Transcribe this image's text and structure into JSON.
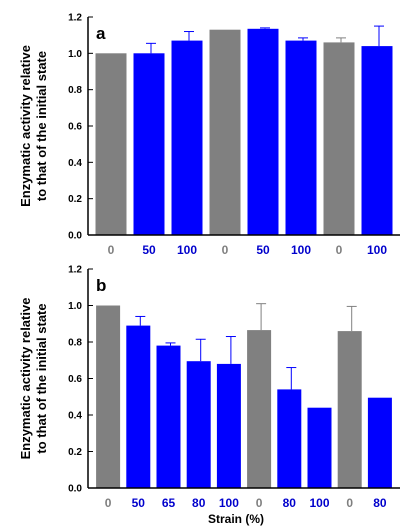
{
  "colors": {
    "gray": "#808080",
    "blue": "#0000ff",
    "tick_gray": "#7f7f7f",
    "tick_blue": "#0000cc",
    "axis": "#000000"
  },
  "chart_data": [
    {
      "type": "bar",
      "panel_label": "a",
      "ylabel_line1": "Enzymatic activity relative",
      "ylabel_line2": "to that of the initial state",
      "xlabel": "",
      "ylim": [
        0,
        1.2
      ],
      "yticks": [
        "0.0",
        "0.2",
        "0.4",
        "0.6",
        "0.8",
        "1.0",
        "1.2"
      ],
      "categories": [
        "0",
        "50",
        "100",
        "0",
        "50",
        "100",
        "0",
        "100"
      ],
      "category_colors": [
        "gray",
        "blue",
        "blue",
        "gray",
        "blue",
        "blue",
        "gray",
        "blue"
      ],
      "values": [
        1.0,
        1.0,
        1.07,
        1.13,
        1.135,
        1.07,
        1.06,
        1.04
      ],
      "errors": [
        0.0,
        0.055,
        0.05,
        0.0,
        0.005,
        0.015,
        0.025,
        0.11
      ],
      "grid": false
    },
    {
      "type": "bar",
      "panel_label": "b",
      "ylabel_line1": "Enzymatic activity relative",
      "ylabel_line2": "to that of the initial state",
      "xlabel": "Strain (%)",
      "ylim": [
        0,
        1.2
      ],
      "yticks": [
        "0.0",
        "0.2",
        "0.4",
        "0.6",
        "0.8",
        "1.0",
        "1.2"
      ],
      "categories": [
        "0",
        "50",
        "65",
        "80",
        "100",
        "0",
        "80",
        "100",
        "0",
        "80"
      ],
      "category_colors": [
        "gray",
        "blue",
        "blue",
        "blue",
        "blue",
        "gray",
        "blue",
        "blue",
        "gray",
        "blue"
      ],
      "values": [
        1.0,
        0.89,
        0.78,
        0.695,
        0.68,
        0.865,
        0.54,
        0.44,
        0.86,
        0.495
      ],
      "errors": [
        0.0,
        0.05,
        0.015,
        0.12,
        0.15,
        0.145,
        0.12,
        0.0,
        0.135,
        0.0
      ],
      "grid": false
    }
  ]
}
